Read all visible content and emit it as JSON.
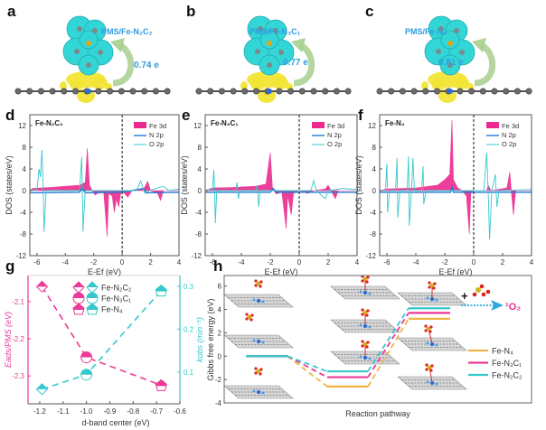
{
  "colors": {
    "fe3d": "#ec2a8e",
    "n2p": "#1f78d1",
    "o2p": "#35c8cc",
    "feN4": "#f0b445",
    "feN3C1": "#ec3a96",
    "feN2C2": "#35c8cc",
    "charge": "#2e9be0",
    "arrow": "#a9cf8e"
  },
  "top_panels": [
    {
      "letter": "a",
      "label": "PMS/Fe-N₂C₂",
      "charge": "0.74 e"
    },
    {
      "letter": "b",
      "label": "PMS/Fe-N₃C₁",
      "charge": "0.77 e"
    },
    {
      "letter": "c",
      "label": "PMS/Fe-N₄",
      "charge": "0.81 e"
    }
  ],
  "chart_data": [
    {
      "panel": "d",
      "type": "line",
      "title": "Fe-N₂C₂",
      "xlabel": "E-Ef (eV)",
      "ylabel": "DOS (states/eV)",
      "xlim": [
        -6.5,
        4
      ],
      "ylim": [
        -12,
        14
      ],
      "xticks": [
        -6,
        -4,
        -2,
        0,
        2,
        4
      ],
      "yticks": [
        -12,
        -8,
        -4,
        0,
        4,
        8,
        12
      ],
      "fermi": 0,
      "legend": [
        "Fe 3d",
        "N 2p",
        "O 2p"
      ],
      "series": [
        {
          "name": "Fe 3d",
          "points": [
            [
              -6.5,
              0
            ],
            [
              -6.3,
              0.4
            ],
            [
              -5,
              0.6
            ],
            [
              -4,
              0.8
            ],
            [
              -3,
              1
            ],
            [
              -2.6,
              1.5
            ],
            [
              -2.45,
              7.8
            ],
            [
              -2.3,
              1
            ],
            [
              -2.1,
              0
            ],
            [
              -1.9,
              -0.8
            ],
            [
              -1.6,
              -0.3
            ],
            [
              -1.3,
              -0.2
            ],
            [
              -1.05,
              -8.5
            ],
            [
              -0.95,
              -0.5
            ],
            [
              -0.7,
              -1
            ],
            [
              -0.55,
              -4
            ],
            [
              -0.4,
              -1.5
            ],
            [
              -0.25,
              -3
            ],
            [
              -0.1,
              -0.5
            ],
            [
              0,
              0
            ],
            [
              0.4,
              -1.2
            ],
            [
              0.7,
              0
            ],
            [
              1.5,
              0.2
            ],
            [
              1.8,
              1.7
            ],
            [
              2,
              0
            ],
            [
              2.5,
              -0.5
            ],
            [
              2.7,
              -1.8
            ],
            [
              2.9,
              0
            ],
            [
              4,
              0
            ]
          ]
        },
        {
          "name": "N 2p",
          "points": [
            [
              -6.5,
              -0.4
            ],
            [
              -3,
              -0.3
            ],
            [
              -2.8,
              0.5
            ],
            [
              -2.6,
              -0.4
            ],
            [
              0,
              -0.3
            ],
            [
              1.5,
              0.4
            ],
            [
              1.7,
              -0.4
            ],
            [
              4,
              -0.3
            ]
          ]
        },
        {
          "name": "O 2p",
          "points": [
            [
              -6.5,
              0
            ],
            [
              -6,
              0.2
            ],
            [
              -5.85,
              4
            ],
            [
              -5.75,
              2.5
            ],
            [
              -5.65,
              7.5
            ],
            [
              -5.55,
              0
            ],
            [
              -5.5,
              -7.6
            ],
            [
              -5.35,
              0
            ],
            [
              -3,
              0
            ],
            [
              -2.85,
              6.2
            ],
            [
              -2.75,
              -7.5
            ],
            [
              -2.6,
              0
            ],
            [
              1,
              0
            ],
            [
              1.3,
              1.8
            ],
            [
              1.6,
              -0.5
            ],
            [
              1.9,
              0
            ],
            [
              2.9,
              0.8
            ],
            [
              3.3,
              0
            ],
            [
              4,
              0.3
            ]
          ]
        }
      ]
    },
    {
      "panel": "e",
      "type": "line",
      "title": "Fe-N₃C₁",
      "xlabel": "E-Ef (eV)",
      "ylabel": "DOS (states/eV)",
      "xlim": [
        -6.5,
        4
      ],
      "ylim": [
        -12,
        14
      ],
      "xticks": [
        -6,
        -4,
        -2,
        0,
        2,
        4
      ],
      "yticks": [
        -12,
        -8,
        -4,
        0,
        4,
        8,
        12
      ],
      "fermi": 0,
      "legend": [
        "Fe 3d",
        "N 2p",
        "O 2p"
      ],
      "series": [
        {
          "name": "Fe 3d",
          "points": [
            [
              -6.5,
              0
            ],
            [
              -6,
              0.5
            ],
            [
              -4.5,
              0.6
            ],
            [
              -3,
              0.8
            ],
            [
              -2.3,
              1.2
            ],
            [
              -2.0,
              7
            ],
            [
              -1.85,
              0.5
            ],
            [
              -1.6,
              -0.6
            ],
            [
              -1.2,
              -0.3
            ],
            [
              -0.9,
              -7
            ],
            [
              -0.8,
              -0.8
            ],
            [
              -0.55,
              -4.5
            ],
            [
              -0.4,
              -0.5
            ],
            [
              0,
              0
            ],
            [
              0.6,
              -0.5
            ],
            [
              1,
              0
            ],
            [
              1.8,
              0.3
            ],
            [
              2,
              1
            ],
            [
              2.2,
              0
            ],
            [
              2.5,
              -1.5
            ],
            [
              2.7,
              0
            ],
            [
              4,
              0
            ]
          ]
        },
        {
          "name": "N 2p",
          "points": [
            [
              -6.5,
              -0.3
            ],
            [
              -2,
              -0.3
            ],
            [
              -1.8,
              0.4
            ],
            [
              -1.6,
              -0.3
            ],
            [
              4,
              -0.3
            ]
          ]
        },
        {
          "name": "O 2p",
          "points": [
            [
              -6.5,
              0
            ],
            [
              -6.0,
              0.3
            ],
            [
              -5.9,
              3.8
            ],
            [
              -5.85,
              0
            ],
            [
              -5.8,
              -6
            ],
            [
              -5.7,
              0
            ],
            [
              -4.4,
              0
            ],
            [
              -4.3,
              1.5
            ],
            [
              -4.2,
              -1.5
            ],
            [
              -4.1,
              0
            ],
            [
              -3.0,
              0
            ],
            [
              -2.9,
              1
            ],
            [
              -2.8,
              -3
            ],
            [
              -2.7,
              0
            ],
            [
              0.8,
              0
            ],
            [
              1.0,
              1.8
            ],
            [
              1.2,
              0
            ],
            [
              1.8,
              -1.5
            ],
            [
              2.0,
              0
            ],
            [
              3,
              0.4
            ],
            [
              4,
              0.2
            ]
          ]
        }
      ]
    },
    {
      "panel": "f",
      "type": "line",
      "title": "Fe-N₄",
      "xlabel": "E-Ef (eV)",
      "ylabel": "DOS (states/eV)",
      "xlim": [
        -6.5,
        4
      ],
      "ylim": [
        -12,
        14
      ],
      "xticks": [
        -6,
        -4,
        -2,
        0,
        2,
        4
      ],
      "yticks": [
        -12,
        -8,
        -4,
        0,
        4,
        8,
        12
      ],
      "fermi": 0,
      "legend": [
        "Fe 3d",
        "N 2p",
        "O 2p"
      ],
      "series": [
        {
          "name": "Fe 3d",
          "points": [
            [
              -6.5,
              0
            ],
            [
              -6,
              0.3
            ],
            [
              -4,
              0.5
            ],
            [
              -2.5,
              1
            ],
            [
              -2,
              2
            ],
            [
              -1.65,
              3
            ],
            [
              -1.5,
              13
            ],
            [
              -1.4,
              2
            ],
            [
              -1.1,
              0.5
            ],
            [
              -0.8,
              0
            ],
            [
              -0.5,
              -1
            ],
            [
              -0.3,
              -8
            ],
            [
              -0.2,
              -0.5
            ],
            [
              0,
              0
            ],
            [
              0.9,
              0
            ],
            [
              1,
              1
            ],
            [
              1.2,
              0
            ],
            [
              2.3,
              0.5
            ],
            [
              2.5,
              3.4
            ],
            [
              2.6,
              0
            ],
            [
              2.75,
              -4.5
            ],
            [
              2.9,
              0
            ],
            [
              4,
              0
            ]
          ]
        },
        {
          "name": "N 2p",
          "points": [
            [
              -6.5,
              -0.3
            ],
            [
              -1.6,
              -0.3
            ],
            [
              -1.5,
              0.6
            ],
            [
              -1.4,
              -0.3
            ],
            [
              4,
              -0.3
            ]
          ]
        },
        {
          "name": "O 2p",
          "points": [
            [
              -6.5,
              0
            ],
            [
              -6.1,
              0
            ],
            [
              -6.0,
              5
            ],
            [
              -5.95,
              -4
            ],
            [
              -5.8,
              0
            ],
            [
              -5.4,
              0
            ],
            [
              -5.3,
              6
            ],
            [
              -5.25,
              -5
            ],
            [
              -5.1,
              0
            ],
            [
              -4.6,
              0
            ],
            [
              -4.5,
              6.3
            ],
            [
              -4.45,
              -6.5
            ],
            [
              -4.3,
              0
            ],
            [
              -4.2,
              6
            ],
            [
              -4.1,
              0
            ],
            [
              -3.6,
              0
            ],
            [
              -3.5,
              4.5
            ],
            [
              -3.45,
              -2.5
            ],
            [
              -3.3,
              0
            ],
            [
              0.7,
              0
            ],
            [
              0.9,
              7
            ],
            [
              1.0,
              0
            ],
            [
              1.1,
              -9
            ],
            [
              1.25,
              0
            ],
            [
              1.5,
              3
            ],
            [
              1.6,
              -3
            ],
            [
              1.75,
              0
            ],
            [
              4,
              0.2
            ]
          ]
        }
      ]
    },
    {
      "panel": "g",
      "type": "scatter",
      "xlabel": "d-band center (eV)",
      "ylabel_left": "Eads/PMS (eV)",
      "ylabel_right": "kobs (min⁻¹)",
      "xlim": [
        -1.25,
        -0.6
      ],
      "ylim_left": [
        -2.375,
        -2.03
      ],
      "ylim_right": [
        0.026,
        0.325
      ],
      "xticks": [
        -1.2,
        -1.1,
        -1.0,
        -0.9,
        -0.8,
        -0.7,
        -0.6
      ],
      "xtick_labels": [
        "-1.2",
        "-1.1",
        "-1.0",
        "-0.9",
        "-0.8",
        "-0.7",
        "-0.6"
      ],
      "yticks_left": [
        -2.1,
        -2.2,
        -2.3
      ],
      "ytick_labels_left": [
        "-2.1",
        "-2.2",
        "-2.3"
      ],
      "yticks_right": [
        0.1,
        0.2,
        0.3
      ],
      "ytick_labels_right": [
        "0.1",
        "0.2",
        "0.3"
      ],
      "categories": [
        "Fe-N₂C₂",
        "Fe-N₃C₁",
        "Fe-N₄"
      ],
      "x": [
        -1.19,
        -1.0,
        -0.68
      ],
      "series": [
        {
          "name": "Eads/PMS",
          "axis": "left",
          "values": [
            -2.06,
            -2.25,
            -2.325
          ]
        },
        {
          "name": "kobs",
          "axis": "right",
          "values": [
            0.06,
            0.094,
            0.29
          ]
        }
      ]
    },
    {
      "panel": "h",
      "type": "line",
      "xlabel": "Reaction pathway",
      "ylabel": "Gibbs free energy (eV)",
      "ylim": [
        -4,
        6.9
      ],
      "yticks": [
        -4,
        -2,
        0,
        2,
        4,
        6
      ],
      "ytick_labels": [
        "-4",
        "-2",
        "0",
        "2",
        "4",
        "6"
      ],
      "product_label": "¹O₂",
      "plus": "+",
      "series": [
        {
          "name": "Fe-N₄",
          "values": [
            0,
            -2.6,
            3.2
          ]
        },
        {
          "name": "Fe-N₃C₁",
          "values": [
            0,
            -1.8,
            3.7
          ]
        },
        {
          "name": "Fe-N₂C₂",
          "values": [
            0,
            -1.3,
            4.1
          ]
        }
      ]
    }
  ]
}
